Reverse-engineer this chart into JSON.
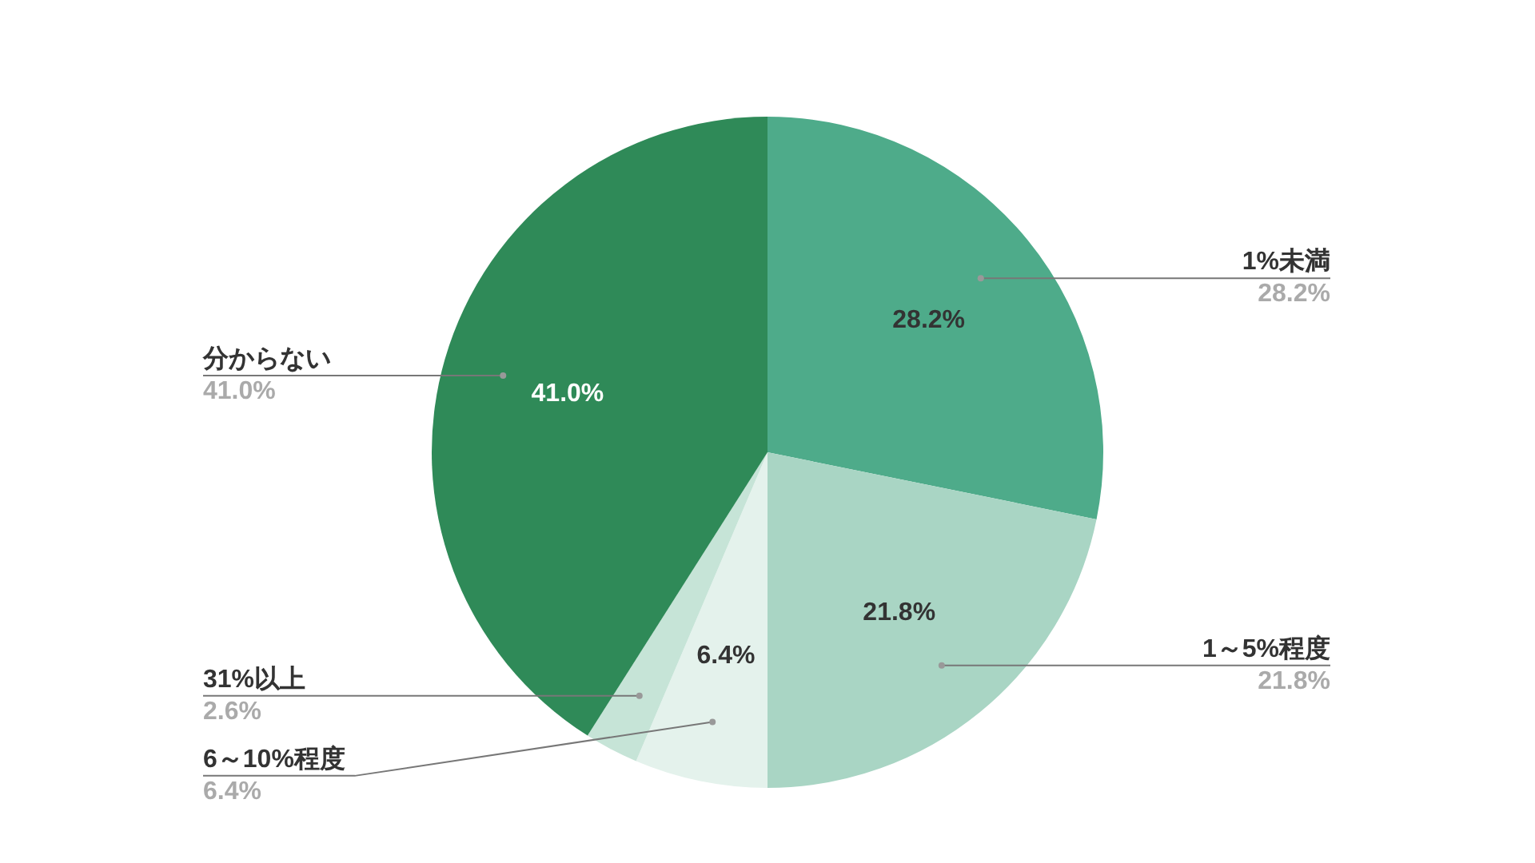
{
  "chart_data": {
    "type": "pie",
    "categories": [
      "1%未満",
      "1～5%程度",
      "6～10%程度",
      "31%以上",
      "分からない"
    ],
    "values": [
      28.2,
      21.8,
      6.4,
      2.6,
      41.0
    ],
    "colors": [
      "#4eab8a",
      "#a9d5c4",
      "#e4f2ec",
      "#c6e4d7",
      "#2f8a58"
    ],
    "value_labels": [
      "28.2%",
      "21.8%",
      "6.4%",
      "2.6%",
      "41.0%"
    ],
    "legend": false
  }
}
